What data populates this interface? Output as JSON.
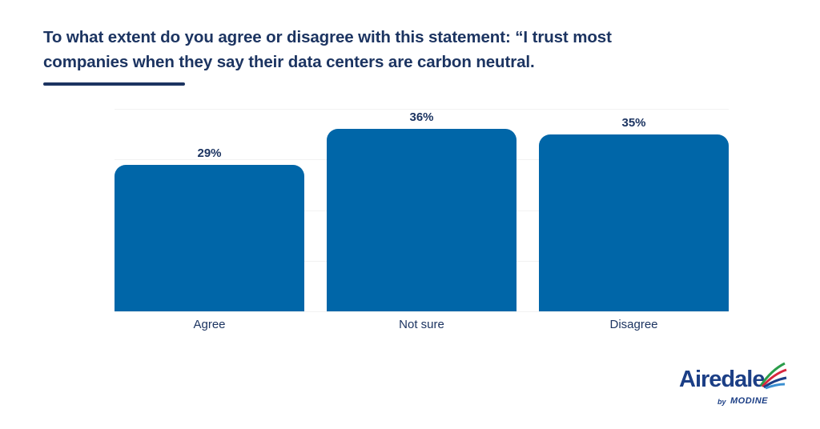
{
  "title": "To what extent do you agree or disagree with this statement: “I trust most companies when they say their data centers are carbon neutral.",
  "colors": {
    "bar": "#0066a8",
    "text": "#1c3461",
    "grid": "#f2f2f2",
    "logo_primary": "#1c3f86"
  },
  "logo": {
    "brand": "Airedale",
    "by": "by",
    "parent": "MODINE"
  },
  "chart_data": {
    "type": "bar",
    "title": "To what extent do you agree or disagree with this statement: “I trust most companies when they say their data centers are carbon neutral.",
    "categories": [
      "Agree",
      "Not sure",
      "Disagree"
    ],
    "values": [
      29,
      36,
      35
    ],
    "value_labels": [
      "29%",
      "36%",
      "35%"
    ],
    "xlabel": "",
    "ylabel": "",
    "ylim": [
      0,
      40
    ],
    "grid": true,
    "gridlines": [
      0,
      10,
      20,
      30,
      40
    ],
    "legend": "none"
  }
}
